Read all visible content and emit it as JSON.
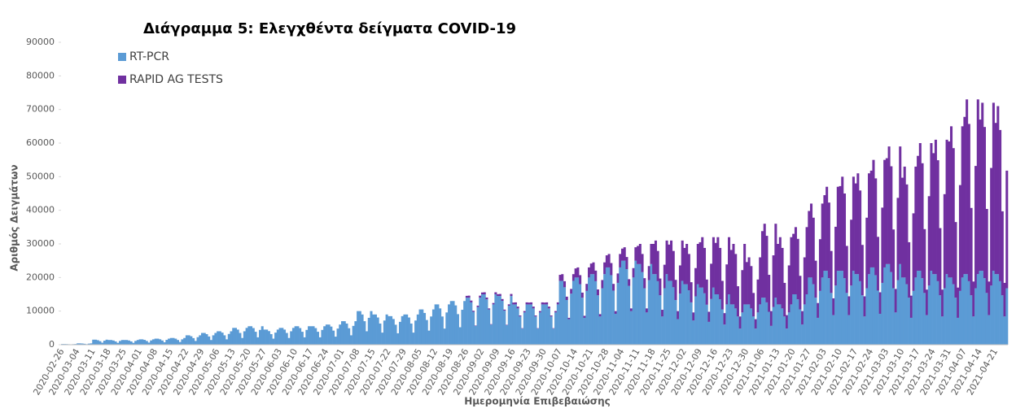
{
  "chart_data": {
    "type": "stacked_bar",
    "title": "Διάγραμμα 5: Ελεγχθέντα δείγματα COVID-19",
    "x_label": "Ημερομηνία Επιβεβαιώσης",
    "y_label": "Αριθμός Δειγμάτων",
    "ylim": [
      0,
      90000
    ],
    "yticks": [
      0,
      10000,
      20000,
      30000,
      40000,
      50000,
      60000,
      70000,
      80000,
      90000
    ],
    "grid": false,
    "legend": "top-left",
    "categories": [
      "2020-02-26",
      null,
      null,
      null,
      null,
      null,
      null,
      "2020-03-04",
      null,
      null,
      null,
      null,
      null,
      null,
      "2020-03-11",
      null,
      null,
      null,
      null,
      null,
      null,
      "2020-03-18",
      null,
      null,
      null,
      null,
      null,
      null,
      "2020-03-25",
      null,
      null,
      null,
      null,
      null,
      null,
      "2020-04-01",
      null,
      null,
      null,
      null,
      null,
      null,
      "2020-04-08",
      null,
      null,
      null,
      null,
      null,
      null,
      "2020-04-15",
      null,
      null,
      null,
      null,
      null,
      null,
      "2020-04-22",
      null,
      null,
      null,
      null,
      null,
      null,
      "2020-04-29",
      null,
      null,
      null,
      null,
      null,
      null,
      "2020-05-06",
      null,
      null,
      null,
      null,
      null,
      null,
      "2020-05-13",
      null,
      null,
      null,
      null,
      null,
      null,
      "2020-05-20",
      null,
      null,
      null,
      null,
      null,
      null,
      "2020-05-27",
      null,
      null,
      null,
      null,
      null,
      null,
      "2020-06-03",
      null,
      null,
      null,
      null,
      null,
      null,
      "2020-06-10",
      null,
      null,
      null,
      null,
      null,
      null,
      "2020-06-17",
      null,
      null,
      null,
      null,
      null,
      null,
      "2020-06-24",
      null,
      null,
      null,
      null,
      null,
      null,
      "2020-07-01",
      null,
      null,
      null,
      null,
      null,
      null,
      "2020-07-08",
      null,
      null,
      null,
      null,
      null,
      null,
      "2020-07-15",
      null,
      null,
      null,
      null,
      null,
      null,
      "2020-07-22",
      null,
      null,
      null,
      null,
      null,
      null,
      "2020-07-29",
      null,
      null,
      null,
      null,
      null,
      null,
      "2020-08-05",
      null,
      null,
      null,
      null,
      null,
      null,
      "2020-08-12",
      null,
      null,
      null,
      null,
      null,
      null,
      "2020-08-19",
      null,
      null,
      null,
      null,
      null,
      null,
      "2020-08-26",
      null,
      null,
      null,
      null,
      null,
      null,
      "2020-09-02",
      null,
      null,
      null,
      null,
      null,
      null,
      "2020-09-09",
      null,
      null,
      null,
      null,
      null,
      null,
      "2020-09-16",
      null,
      null,
      null,
      null,
      null,
      null,
      "2020-09-23",
      null,
      null,
      null,
      null,
      null,
      null,
      "2020-09-30",
      null,
      null,
      null,
      null,
      null,
      null,
      "2020-10-07",
      null,
      null,
      null,
      null,
      null,
      null,
      "2020-10-14",
      null,
      null,
      null,
      null,
      null,
      null,
      "2020-10-21",
      null,
      null,
      null,
      null,
      null,
      null,
      "2020-10-28",
      null,
      null,
      null,
      null,
      null,
      null,
      "2020-11-04",
      null,
      null,
      null,
      null,
      null,
      null,
      "2020-11-11",
      null,
      null,
      null,
      null,
      null,
      null,
      "2020-11-18",
      null,
      null,
      null,
      null,
      null,
      null,
      "2020-11-25",
      null,
      null,
      null,
      null,
      null,
      null,
      "2020-12-02",
      null,
      null,
      null,
      null,
      null,
      null,
      "2020-12-09",
      null,
      null,
      null,
      null,
      null,
      null,
      "2020-12-16",
      null,
      null,
      null,
      null,
      null,
      null,
      "2020-12-23",
      null,
      null,
      null,
      null,
      null,
      null,
      "2020-12-30",
      null,
      null,
      null,
      null,
      null,
      null,
      "2021-01-06",
      null,
      null,
      null,
      null,
      null,
      null,
      "2021-01-13",
      null,
      null,
      null,
      null,
      null,
      null,
      "2021-01-20",
      null,
      null,
      null,
      null,
      null,
      null,
      "2021-01-27",
      null,
      null,
      null,
      null,
      null,
      null,
      "2021-02-03",
      null,
      null,
      null,
      null,
      null,
      null,
      "2021-02-10",
      null,
      null,
      null,
      null,
      null,
      null,
      "2021-02-17",
      null,
      null,
      null,
      null,
      null,
      null,
      "2021-02-24",
      null,
      null,
      null,
      null,
      null,
      null,
      "2021-03-03",
      null,
      null,
      null,
      null,
      null,
      null,
      "2021-03-10",
      null,
      null,
      null,
      null,
      null,
      null,
      "2021-03-17",
      null,
      null,
      null,
      null,
      null,
      null,
      "2021-03-24",
      null,
      null,
      null,
      null,
      null,
      null,
      "2021-03-31",
      null,
      null,
      null,
      null,
      null,
      null,
      "2021-04-07",
      null,
      null,
      null,
      null,
      null,
      null,
      "2021-04-14",
      null,
      null,
      null,
      null,
      null,
      null,
      "2021-04-21",
      null,
      null,
      null,
      null,
      null
    ],
    "series": [
      {
        "name": "RT-PCR",
        "color": "#5b9bd5",
        "values": [
          200,
          200,
          180,
          140,
          80,
          160,
          200,
          400,
          400,
          360,
          280,
          160,
          320,
          400,
          1500,
          1500,
          1350,
          1050,
          600,
          1200,
          1500,
          1400,
          1400,
          1260,
          980,
          560,
          1120,
          1400,
          1400,
          1400,
          1260,
          980,
          560,
          1120,
          1400,
          1600,
          1600,
          1440,
          1120,
          640,
          1280,
          1600,
          1800,
          1800,
          1620,
          1260,
          720,
          1440,
          1800,
          2000,
          2000,
          1800,
          1400,
          800,
          1600,
          2000,
          2800,
          2800,
          2520,
          1960,
          1120,
          2240,
          2800,
          3500,
          3500,
          3150,
          2450,
          1400,
          2800,
          3500,
          4000,
          4000,
          3600,
          2800,
          1600,
          3200,
          4000,
          5000,
          5000,
          4500,
          3500,
          2000,
          4000,
          5000,
          5500,
          5500,
          4950,
          3850,
          2200,
          4400,
          5500,
          4500,
          4500,
          4050,
          3150,
          1800,
          3600,
          4500,
          5000,
          5000,
          4500,
          3500,
          2000,
          4000,
          5000,
          5500,
          5500,
          4950,
          3850,
          2200,
          4400,
          5500,
          5500,
          5500,
          4950,
          3850,
          2200,
          4400,
          5500,
          6000,
          6000,
          5400,
          4200,
          2400,
          4800,
          6000,
          7000,
          7000,
          6300,
          4900,
          2800,
          5600,
          7000,
          10000,
          10000,
          9000,
          7000,
          4000,
          8000,
          10000,
          9000,
          9000,
          8100,
          6300,
          3600,
          7200,
          9000,
          8500,
          8500,
          7650,
          5950,
          3400,
          6800,
          8500,
          9000,
          9000,
          8100,
          6300,
          3600,
          7200,
          9000,
          10500,
          10500,
          9450,
          7350,
          4200,
          8400,
          10500,
          12000,
          12000,
          10800,
          8400,
          4800,
          9600,
          12000,
          13000,
          13000,
          11700,
          9100,
          5200,
          10400,
          13000,
          14000,
          14000,
          12600,
          9800,
          5600,
          11200,
          14000,
          15000,
          15000,
          13500,
          10500,
          6000,
          12000,
          15000,
          14500,
          14500,
          13050,
          10150,
          5800,
          11600,
          14500,
          12000,
          12000,
          10800,
          8400,
          4800,
          9600,
          12000,
          12000,
          12000,
          10800,
          8400,
          4800,
          9600,
          12000,
          12000,
          12000,
          10800,
          8400,
          4800,
          9600,
          12000,
          19000,
          19000,
          17100,
          13300,
          7600,
          15200,
          19000,
          20000,
          20000,
          18000,
          14000,
          8000,
          16000,
          20000,
          21000,
          21000,
          18900,
          14700,
          8400,
          16800,
          21000,
          23000,
          23000,
          20700,
          16100,
          9200,
          18400,
          23000,
          25000,
          25000,
          22500,
          17500,
          10000,
          20000,
          25000,
          24000,
          24000,
          21600,
          16800,
          9600,
          19200,
          24000,
          21000,
          21000,
          18900,
          14700,
          8400,
          16800,
          21000,
          19000,
          19000,
          17100,
          13300,
          7600,
          15200,
          19000,
          18000,
          18000,
          16200,
          12600,
          7200,
          14400,
          18000,
          17000,
          17000,
          15300,
          11900,
          6800,
          13600,
          17000,
          15000,
          15000,
          13500,
          10500,
          6000,
          12000,
          15000,
          12000,
          12000,
          10800,
          8400,
          4800,
          9600,
          12000,
          12000,
          12000,
          10800,
          8400,
          4800,
          9600,
          12000,
          14000,
          14000,
          12600,
          9800,
          5600,
          11200,
          14000,
          12000,
          12000,
          10800,
          8400,
          4800,
          9600,
          12000,
          15000,
          15000,
          13500,
          10500,
          6000,
          12000,
          15000,
          20000,
          20000,
          18000,
          14000,
          8000,
          16000,
          20000,
          22000,
          22000,
          19800,
          15400,
          8800,
          17600,
          22000,
          22000,
          22000,
          19800,
          15400,
          8800,
          17600,
          22000,
          21000,
          21000,
          18900,
          14700,
          8400,
          16800,
          21000,
          23000,
          23000,
          20700,
          16100,
          9200,
          18400,
          23000,
          24000,
          24000,
          21600,
          16800,
          9600,
          19200,
          24000,
          20000,
          20000,
          18000,
          14000,
          8000,
          16000,
          20000,
          22000,
          22000,
          19800,
          15400,
          8800,
          17600,
          22000,
          21000,
          21000,
          18900,
          14700,
          8400,
          16800,
          21000,
          20000,
          20000,
          18000,
          14000,
          8000,
          16000,
          20000,
          21000,
          21000,
          18900,
          14700,
          8400,
          16800,
          21000,
          22000,
          22000,
          19800,
          15400,
          8800,
          17600,
          22000,
          21000,
          21000,
          18900,
          14700,
          8400,
          16800
        ]
      },
      {
        "name": "RAPID AG TESTS",
        "color": "#7030a0",
        "values": [
          0,
          0,
          0,
          0,
          0,
          0,
          0,
          0,
          0,
          0,
          0,
          0,
          0,
          0,
          0,
          0,
          0,
          0,
          0,
          0,
          0,
          0,
          0,
          0,
          0,
          0,
          0,
          0,
          0,
          0,
          0,
          0,
          0,
          0,
          0,
          0,
          0,
          0,
          0,
          0,
          0,
          0,
          0,
          0,
          0,
          0,
          0,
          0,
          0,
          0,
          0,
          0,
          0,
          0,
          0,
          0,
          0,
          0,
          0,
          0,
          0,
          0,
          0,
          0,
          0,
          0,
          0,
          0,
          0,
          0,
          0,
          0,
          0,
          0,
          0,
          0,
          0,
          0,
          0,
          0,
          0,
          0,
          0,
          0,
          0,
          0,
          0,
          0,
          0,
          0,
          0,
          0,
          0,
          0,
          0,
          0,
          0,
          0,
          0,
          0,
          0,
          0,
          0,
          0,
          0,
          0,
          0,
          0,
          0,
          0,
          0,
          0,
          0,
          0,
          0,
          0,
          0,
          0,
          0,
          0,
          0,
          0,
          0,
          0,
          0,
          0,
          0,
          0,
          0,
          0,
          0,
          0,
          0,
          0,
          0,
          0,
          0,
          0,
          0,
          0,
          0,
          0,
          0,
          0,
          0,
          0,
          0,
          0,
          0,
          0,
          0,
          0,
          0,
          0,
          0,
          0,
          0,
          0,
          0,
          0,
          0,
          0,
          0,
          0,
          0,
          0,
          0,
          0,
          0,
          0,
          0,
          0,
          0,
          0,
          0,
          0,
          0,
          0,
          0,
          0,
          0,
          0,
          540,
          600,
          540,
          300,
          120,
          420,
          600,
          540,
          600,
          540,
          300,
          120,
          420,
          600,
          540,
          600,
          540,
          300,
          120,
          420,
          600,
          540,
          600,
          540,
          300,
          120,
          420,
          600,
          540,
          600,
          540,
          300,
          120,
          420,
          600,
          540,
          600,
          540,
          300,
          120,
          420,
          600,
          1800,
          2000,
          1800,
          1000,
          400,
          1400,
          2000,
          2700,
          3000,
          2700,
          1500,
          600,
          2100,
          3000,
          3150,
          3500,
          3150,
          1750,
          700,
          2450,
          3500,
          3600,
          4000,
          3600,
          2000,
          800,
          2800,
          4000,
          3600,
          4000,
          3600,
          2000,
          800,
          2800,
          4000,
          5400,
          6000,
          5400,
          3000,
          1200,
          4200,
          6000,
          9000,
          10000,
          9000,
          5000,
          2000,
          7000,
          10000,
          10800,
          12000,
          10800,
          6000,
          2400,
          8400,
          12000,
          10800,
          12000,
          10800,
          6000,
          2400,
          8400,
          12000,
          13500,
          15000,
          13500,
          7500,
          3000,
          10500,
          15000,
          15300,
          17000,
          15300,
          8500,
          3400,
          11900,
          17000,
          16200,
          18000,
          16200,
          9000,
          3600,
          12600,
          18000,
          12600,
          14000,
          12600,
          7000,
          2800,
          9800,
          14000,
          19800,
          22000,
          19800,
          11000,
          4400,
          15400,
          22000,
          18000,
          20000,
          18000,
          10000,
          4000,
          14000,
          20000,
          18000,
          20000,
          18000,
          10000,
          4000,
          14000,
          20000,
          19800,
          22000,
          19800,
          11000,
          4400,
          15400,
          22000,
          22500,
          25000,
          22500,
          12500,
          5000,
          17500,
          25000,
          25200,
          28000,
          25200,
          14000,
          5600,
          19600,
          28000,
          27000,
          30000,
          27000,
          15000,
          6000,
          21000,
          30000,
          28800,
          32000,
          28800,
          16000,
          6400,
          22400,
          32000,
          31500,
          35000,
          31500,
          17500,
          7000,
          24500,
          35000,
          29700,
          33000,
          29700,
          16500,
          6600,
          23100,
          33000,
          34200,
          38000,
          34200,
          19000,
          7600,
          26600,
          38000,
          36000,
          40000,
          36000,
          20000,
          8000,
          28000,
          40000,
          40500,
          45000,
          40500,
          22500,
          9000,
          31500,
          45000,
          46800,
          52000,
          46800,
          26000,
          10400,
          36400,
          52000,
          45000,
          50000,
          45000,
          25000,
          10000,
          35000,
          50000,
          45000,
          50000,
          45000,
          25000,
          10000,
          35000
        ]
      }
    ]
  }
}
